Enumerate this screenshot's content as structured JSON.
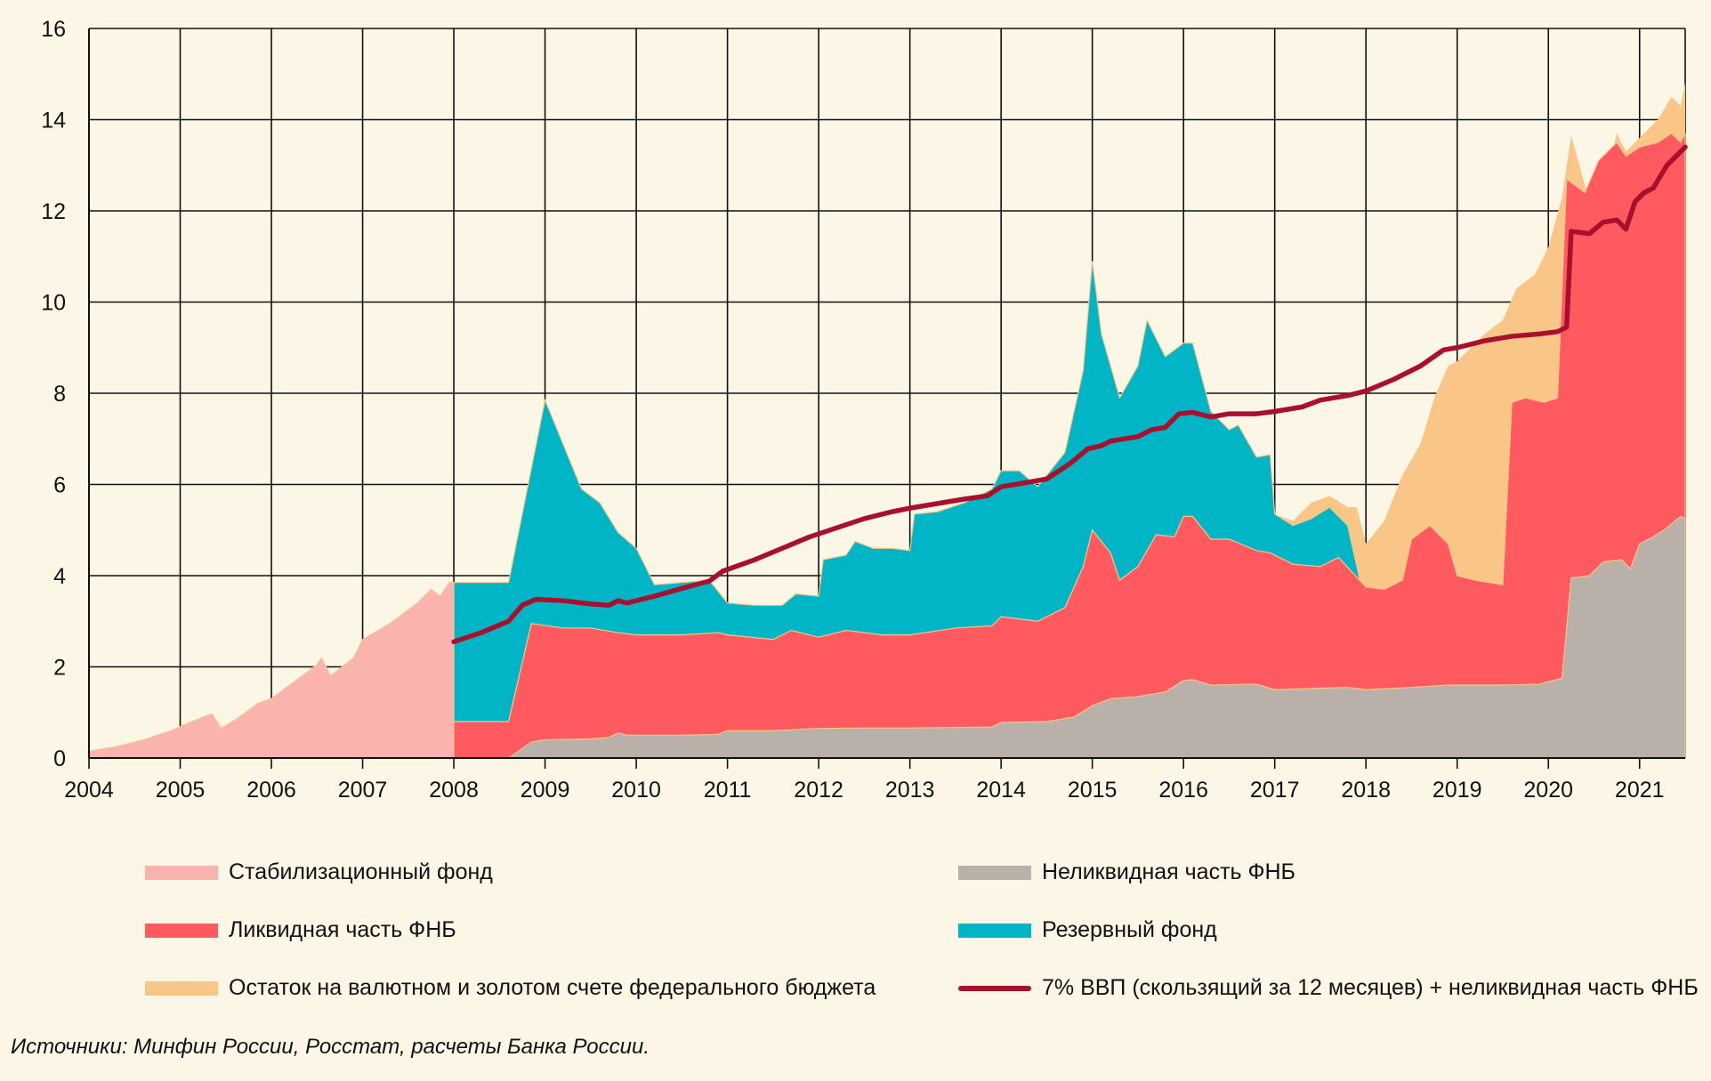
{
  "chart_data": {
    "type": "area",
    "title": "",
    "xlabel": "",
    "ylabel": "",
    "xlim": [
      2004,
      2021.5
    ],
    "ylim": [
      0,
      16
    ],
    "grid": true,
    "x_ticks": [
      "2004",
      "2005",
      "2006",
      "2007",
      "2008",
      "2009",
      "2010",
      "2011",
      "2012",
      "2013",
      "2014",
      "2015",
      "2016",
      "2017",
      "2018",
      "2019",
      "2020",
      "2021"
    ],
    "y_ticks": [
      "0",
      "2",
      "4",
      "6",
      "8",
      "10",
      "12",
      "14",
      "16"
    ],
    "stacked": true,
    "series": [
      {
        "name": "Неликвидная часть ФНБ",
        "color": "#b8b0a9",
        "points": [
          [
            2008.0,
            0
          ],
          [
            2008.6,
            0
          ],
          [
            2008.85,
            0.35
          ],
          [
            2009.0,
            0.4
          ],
          [
            2009.5,
            0.42
          ],
          [
            2009.7,
            0.45
          ],
          [
            2009.8,
            0.55
          ],
          [
            2009.9,
            0.5
          ],
          [
            2010.5,
            0.5
          ],
          [
            2010.9,
            0.52
          ],
          [
            2011.0,
            0.6
          ],
          [
            2011.5,
            0.6
          ],
          [
            2012.0,
            0.65
          ],
          [
            2012.5,
            0.66
          ],
          [
            2013.0,
            0.66
          ],
          [
            2013.9,
            0.68
          ],
          [
            2014.0,
            0.78
          ],
          [
            2014.5,
            0.8
          ],
          [
            2014.8,
            0.9
          ],
          [
            2015.0,
            1.15
          ],
          [
            2015.2,
            1.3
          ],
          [
            2015.5,
            1.35
          ],
          [
            2015.8,
            1.45
          ],
          [
            2016.0,
            1.7
          ],
          [
            2016.1,
            1.72
          ],
          [
            2016.3,
            1.6
          ],
          [
            2016.8,
            1.62
          ],
          [
            2017.0,
            1.5
          ],
          [
            2017.3,
            1.52
          ],
          [
            2017.8,
            1.55
          ],
          [
            2018.0,
            1.5
          ],
          [
            2018.5,
            1.55
          ],
          [
            2018.9,
            1.6
          ],
          [
            2019.5,
            1.6
          ],
          [
            2019.9,
            1.62
          ],
          [
            2020.15,
            1.75
          ],
          [
            2020.25,
            3.95
          ],
          [
            2020.45,
            4.0
          ],
          [
            2020.6,
            4.3
          ],
          [
            2020.8,
            4.35
          ],
          [
            2020.9,
            4.15
          ],
          [
            2021.0,
            4.7
          ],
          [
            2021.15,
            4.85
          ],
          [
            2021.3,
            5.05
          ],
          [
            2021.45,
            5.3
          ],
          [
            2021.5,
            5.25
          ]
        ]
      },
      {
        "name": "Ликвидная часть ФНБ",
        "color": "#ff5a5f",
        "points": [
          [
            2008.0,
            0.8
          ],
          [
            2008.6,
            0.8
          ],
          [
            2008.85,
            2.95
          ],
          [
            2009.2,
            2.85
          ],
          [
            2009.5,
            2.85
          ],
          [
            2009.8,
            2.75
          ],
          [
            2010.0,
            2.7
          ],
          [
            2010.5,
            2.7
          ],
          [
            2010.9,
            2.75
          ],
          [
            2011.0,
            2.7
          ],
          [
            2011.5,
            2.6
          ],
          [
            2011.7,
            2.8
          ],
          [
            2012.0,
            2.65
          ],
          [
            2012.3,
            2.8
          ],
          [
            2012.7,
            2.7
          ],
          [
            2013.0,
            2.7
          ],
          [
            2013.5,
            2.85
          ],
          [
            2013.9,
            2.9
          ],
          [
            2014.0,
            3.1
          ],
          [
            2014.4,
            3.0
          ],
          [
            2014.7,
            3.3
          ],
          [
            2014.9,
            4.2
          ],
          [
            2015.0,
            5.0
          ],
          [
            2015.2,
            4.5
          ],
          [
            2015.3,
            3.9
          ],
          [
            2015.5,
            4.2
          ],
          [
            2015.7,
            4.9
          ],
          [
            2015.9,
            4.85
          ],
          [
            2016.0,
            5.3
          ],
          [
            2016.1,
            5.3
          ],
          [
            2016.3,
            4.8
          ],
          [
            2016.5,
            4.8
          ],
          [
            2016.8,
            4.55
          ],
          [
            2016.95,
            4.5
          ],
          [
            2017.2,
            4.25
          ],
          [
            2017.5,
            4.2
          ],
          [
            2017.7,
            4.4
          ],
          [
            2018.0,
            3.75
          ],
          [
            2018.2,
            3.7
          ],
          [
            2018.4,
            3.9
          ],
          [
            2018.5,
            4.8
          ],
          [
            2018.7,
            5.1
          ],
          [
            2018.9,
            4.7
          ],
          [
            2019.0,
            4.0
          ],
          [
            2019.2,
            3.9
          ],
          [
            2019.5,
            3.8
          ],
          [
            2019.6,
            7.8
          ],
          [
            2019.75,
            7.9
          ],
          [
            2019.95,
            7.8
          ],
          [
            2020.1,
            7.9
          ],
          [
            2020.2,
            12.7
          ],
          [
            2020.4,
            12.4
          ],
          [
            2020.55,
            13.1
          ],
          [
            2020.75,
            13.5
          ],
          [
            2020.85,
            13.2
          ],
          [
            2021.0,
            13.4
          ],
          [
            2021.2,
            13.5
          ],
          [
            2021.35,
            13.7
          ],
          [
            2021.45,
            13.5
          ],
          [
            2021.5,
            13.7
          ]
        ]
      },
      {
        "name": "Резервный фонд",
        "color": "#00b5c6",
        "points": [
          [
            2008.0,
            3.85
          ],
          [
            2008.6,
            3.85
          ],
          [
            2009.0,
            7.85
          ],
          [
            2009.4,
            5.9
          ],
          [
            2009.6,
            5.6
          ],
          [
            2009.8,
            4.95
          ],
          [
            2010.0,
            4.6
          ],
          [
            2010.2,
            3.8
          ],
          [
            2010.5,
            3.85
          ],
          [
            2010.8,
            3.9
          ],
          [
            2011.0,
            3.4
          ],
          [
            2011.3,
            3.35
          ],
          [
            2011.6,
            3.35
          ],
          [
            2011.75,
            3.6
          ],
          [
            2012.0,
            3.55
          ],
          [
            2012.05,
            4.35
          ],
          [
            2012.3,
            4.45
          ],
          [
            2012.4,
            4.75
          ],
          [
            2012.6,
            4.6
          ],
          [
            2012.8,
            4.6
          ],
          [
            2013.0,
            4.55
          ],
          [
            2013.05,
            5.35
          ],
          [
            2013.3,
            5.4
          ],
          [
            2013.6,
            5.6
          ],
          [
            2013.9,
            5.9
          ],
          [
            2014.0,
            6.3
          ],
          [
            2014.2,
            6.3
          ],
          [
            2014.4,
            5.95
          ],
          [
            2014.7,
            6.7
          ],
          [
            2014.9,
            8.5
          ],
          [
            2015.0,
            10.9
          ],
          [
            2015.1,
            9.3
          ],
          [
            2015.3,
            7.9
          ],
          [
            2015.5,
            8.6
          ],
          [
            2015.6,
            9.6
          ],
          [
            2015.8,
            8.8
          ],
          [
            2016.0,
            9.1
          ],
          [
            2016.1,
            9.1
          ],
          [
            2016.3,
            7.6
          ],
          [
            2016.5,
            7.2
          ],
          [
            2016.6,
            7.3
          ],
          [
            2016.8,
            6.6
          ],
          [
            2016.95,
            6.65
          ],
          [
            2017.0,
            5.35
          ],
          [
            2017.2,
            5.1
          ],
          [
            2017.4,
            5.25
          ],
          [
            2017.6,
            5.5
          ],
          [
            2017.8,
            5.1
          ],
          [
            2017.95,
            3.75
          ]
        ]
      },
      {
        "name": "Остаток на валютном и золотом счете федерального бюджета",
        "color": "#f9c688",
        "points": [
          [
            2017.0,
            5.35
          ],
          [
            2017.2,
            5.2
          ],
          [
            2017.4,
            5.6
          ],
          [
            2017.6,
            5.75
          ],
          [
            2017.8,
            5.5
          ],
          [
            2017.9,
            5.5
          ],
          [
            2018.0,
            4.7
          ],
          [
            2018.2,
            5.2
          ],
          [
            2018.4,
            6.2
          ],
          [
            2018.6,
            6.9
          ],
          [
            2018.75,
            7.9
          ],
          [
            2018.9,
            8.6
          ],
          [
            2019.0,
            8.7
          ],
          [
            2019.3,
            9.3
          ],
          [
            2019.5,
            9.6
          ],
          [
            2019.65,
            10.3
          ],
          [
            2019.85,
            10.6
          ],
          [
            2020.0,
            11.2
          ],
          [
            2020.15,
            12.3
          ],
          [
            2020.25,
            13.65
          ],
          [
            2020.45,
            12.2
          ],
          [
            2020.55,
            11.9
          ],
          [
            2020.75,
            13.7
          ],
          [
            2020.85,
            13.3
          ],
          [
            2021.0,
            13.6
          ],
          [
            2021.2,
            14.0
          ],
          [
            2021.35,
            14.5
          ],
          [
            2021.45,
            14.3
          ],
          [
            2021.5,
            14.8
          ]
        ]
      },
      {
        "name": "Стабилизационный фонд",
        "color": "#fbb3b0",
        "points": [
          [
            2004.0,
            0.15
          ],
          [
            2004.3,
            0.25
          ],
          [
            2004.6,
            0.4
          ],
          [
            2004.9,
            0.6
          ],
          [
            2005.1,
            0.78
          ],
          [
            2005.35,
            0.97
          ],
          [
            2005.45,
            0.65
          ],
          [
            2005.65,
            0.9
          ],
          [
            2005.85,
            1.2
          ],
          [
            2006.0,
            1.3
          ],
          [
            2006.3,
            1.75
          ],
          [
            2006.5,
            2.05
          ],
          [
            2006.55,
            2.2
          ],
          [
            2006.65,
            1.8
          ],
          [
            2006.9,
            2.2
          ],
          [
            2007.0,
            2.6
          ],
          [
            2007.3,
            2.95
          ],
          [
            2007.6,
            3.4
          ],
          [
            2007.75,
            3.7
          ],
          [
            2007.85,
            3.55
          ],
          [
            2007.95,
            3.85
          ],
          [
            2008.0,
            3.85
          ],
          [
            2008.0,
            0
          ]
        ]
      }
    ],
    "line": {
      "name": "7% ВВП (скользящий за 12 месяцев) + неликвидная часть ФНБ",
      "color": "#a8102e",
      "points": [
        [
          2008.0,
          2.55
        ],
        [
          2008.3,
          2.75
        ],
        [
          2008.6,
          3.0
        ],
        [
          2008.75,
          3.35
        ],
        [
          2008.9,
          3.48
        ],
        [
          2009.2,
          3.45
        ],
        [
          2009.5,
          3.38
        ],
        [
          2009.7,
          3.35
        ],
        [
          2009.8,
          3.45
        ],
        [
          2009.9,
          3.4
        ],
        [
          2010.2,
          3.55
        ],
        [
          2010.5,
          3.72
        ],
        [
          2010.8,
          3.88
        ],
        [
          2010.95,
          4.1
        ],
        [
          2011.3,
          4.35
        ],
        [
          2011.6,
          4.6
        ],
        [
          2011.9,
          4.85
        ],
        [
          2012.2,
          5.05
        ],
        [
          2012.5,
          5.25
        ],
        [
          2012.8,
          5.4
        ],
        [
          2013.0,
          5.48
        ],
        [
          2013.3,
          5.58
        ],
        [
          2013.6,
          5.68
        ],
        [
          2013.85,
          5.75
        ],
        [
          2014.0,
          5.95
        ],
        [
          2014.3,
          6.05
        ],
        [
          2014.5,
          6.12
        ],
        [
          2014.75,
          6.45
        ],
        [
          2014.95,
          6.78
        ],
        [
          2015.1,
          6.85
        ],
        [
          2015.2,
          6.95
        ],
        [
          2015.5,
          7.05
        ],
        [
          2015.65,
          7.2
        ],
        [
          2015.8,
          7.25
        ],
        [
          2015.95,
          7.55
        ],
        [
          2016.1,
          7.58
        ],
        [
          2016.3,
          7.48
        ],
        [
          2016.5,
          7.55
        ],
        [
          2016.8,
          7.55
        ],
        [
          2017.0,
          7.6
        ],
        [
          2017.3,
          7.7
        ],
        [
          2017.5,
          7.85
        ],
        [
          2017.8,
          7.95
        ],
        [
          2018.0,
          8.05
        ],
        [
          2018.3,
          8.3
        ],
        [
          2018.6,
          8.6
        ],
        [
          2018.85,
          8.95
        ],
        [
          2019.0,
          9.0
        ],
        [
          2019.3,
          9.15
        ],
        [
          2019.6,
          9.25
        ],
        [
          2019.9,
          9.3
        ],
        [
          2020.1,
          9.35
        ],
        [
          2020.2,
          9.45
        ],
        [
          2020.25,
          11.55
        ],
        [
          2020.45,
          11.5
        ],
        [
          2020.6,
          11.75
        ],
        [
          2020.75,
          11.8
        ],
        [
          2020.85,
          11.6
        ],
        [
          2020.95,
          12.2
        ],
        [
          2021.05,
          12.4
        ],
        [
          2021.15,
          12.5
        ],
        [
          2021.3,
          13.0
        ],
        [
          2021.45,
          13.3
        ],
        [
          2021.5,
          13.4
        ]
      ]
    }
  },
  "legend": {
    "items": [
      {
        "label": "Стабилизационный фонд",
        "color": "#fbb3b0",
        "kind": "area"
      },
      {
        "label": "Ликвидная часть ФНБ",
        "color": "#ff5a5f",
        "kind": "area"
      },
      {
        "label": "Остаток на валютном и золотом счете федерального бюджета",
        "color": "#f9c688",
        "kind": "area"
      },
      {
        "label": "Неликвидная часть ФНБ",
        "color": "#b8b0a9",
        "kind": "area"
      },
      {
        "label": "Резервный фонд",
        "color": "#00b5c6",
        "kind": "area"
      },
      {
        "label": "7% ВВП (скользящий за 12 месяцев) + неликвидная часть ФНБ",
        "color": "#a8102e",
        "kind": "line"
      }
    ]
  },
  "source": "Источники: Минфин России, Росстат, расчеты Банка России."
}
